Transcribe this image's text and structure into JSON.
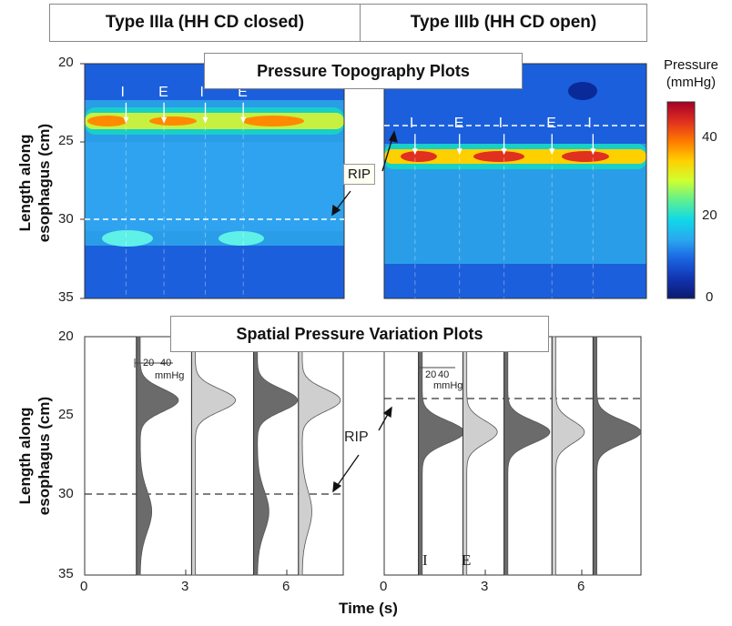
{
  "headers": {
    "left": "Type IIIa (HH CD closed)",
    "right": "Type IIIb (HH CD open)"
  },
  "top_title": "Pressure Topography Plots",
  "bottom_title": "Spatial Pressure Variation Plots",
  "y_label_line1": "Length along",
  "y_label_line2": "esophagus (cm)",
  "x_label": "Time (s)",
  "rip_label": "RIP",
  "colorbar": {
    "title_line1": "Pressure",
    "title_line2": "(mmHg)",
    "ticks": [
      "40",
      "20",
      "0"
    ],
    "colors": [
      "#a50026",
      "#e03020",
      "#ff7a00",
      "#ffd000",
      "#cfff30",
      "#5ff090",
      "#10d8e8",
      "#2aa8f0",
      "#1a63e0",
      "#1234b0",
      "#0b1a70"
    ]
  },
  "y_ticks": [
    "20",
    "25",
    "30",
    "35"
  ],
  "x_ticks": [
    "0",
    "3",
    "6"
  ],
  "scale": {
    "label1": "20",
    "label2": "40",
    "unit": "mmHg"
  },
  "markers_a": [
    "I",
    "E",
    "I",
    "E"
  ],
  "markers_b": [
    "I",
    "E",
    "I",
    "E",
    "I"
  ],
  "bottom_markers": [
    "I",
    "E"
  ],
  "chart_data": {
    "type": "heatmap",
    "y_axis": {
      "label": "Length along esophagus (cm)",
      "range": [
        20,
        35
      ],
      "reversed": true
    },
    "x_axis": {
      "label": "Time (s)",
      "range": [
        0,
        7.5
      ]
    },
    "pressure_scale_mmHg": [
      0,
      50
    ],
    "panels": [
      {
        "name": "Type IIIa (HH CD closed)",
        "rip_cm": 30,
        "high_pressure_band_cm": 24,
        "events": [
          {
            "t": 1.2,
            "label": "I"
          },
          {
            "t": 2.3,
            "label": "E"
          },
          {
            "t": 3.5,
            "label": "I"
          },
          {
            "t": 4.6,
            "label": "E"
          }
        ],
        "profiles": [
          {
            "t": 1.5,
            "inspiration": true,
            "peaks": [
              {
                "cm": 24,
                "mmHg": 40
              },
              {
                "cm": 31,
                "mmHg": 12
              }
            ]
          },
          {
            "t": 3.1,
            "inspiration": false,
            "peaks": [
              {
                "cm": 24,
                "mmHg": 42
              }
            ]
          },
          {
            "t": 4.9,
            "inspiration": true,
            "peaks": [
              {
                "cm": 24,
                "mmHg": 42
              },
              {
                "cm": 31,
                "mmHg": 12
              }
            ]
          },
          {
            "t": 6.2,
            "inspiration": false,
            "peaks": [
              {
                "cm": 24,
                "mmHg": 40
              },
              {
                "cm": 31,
                "mmHg": 10
              }
            ]
          }
        ]
      },
      {
        "name": "Type IIIb (HH CD open)",
        "rip_cm": 24,
        "high_pressure_band_cm": 26,
        "events": [
          {
            "t": 0.9,
            "label": "I"
          },
          {
            "t": 2.2,
            "label": "E"
          },
          {
            "t": 3.5,
            "label": "I"
          },
          {
            "t": 4.9,
            "label": "E"
          },
          {
            "t": 6.1,
            "label": "I"
          }
        ],
        "profiles": [
          {
            "t": 1.0,
            "inspiration": true,
            "peaks": [
              {
                "cm": 26,
                "mmHg": 44
              }
            ]
          },
          {
            "t": 2.3,
            "inspiration": false,
            "peaks": [
              {
                "cm": 26,
                "mmHg": 32
              }
            ]
          },
          {
            "t": 3.5,
            "inspiration": true,
            "peaks": [
              {
                "cm": 26,
                "mmHg": 44
              }
            ]
          },
          {
            "t": 4.9,
            "inspiration": false,
            "peaks": [
              {
                "cm": 26,
                "mmHg": 30
              }
            ]
          },
          {
            "t": 6.1,
            "inspiration": true,
            "peaks": [
              {
                "cm": 26,
                "mmHg": 46
              }
            ]
          }
        ]
      }
    ]
  }
}
